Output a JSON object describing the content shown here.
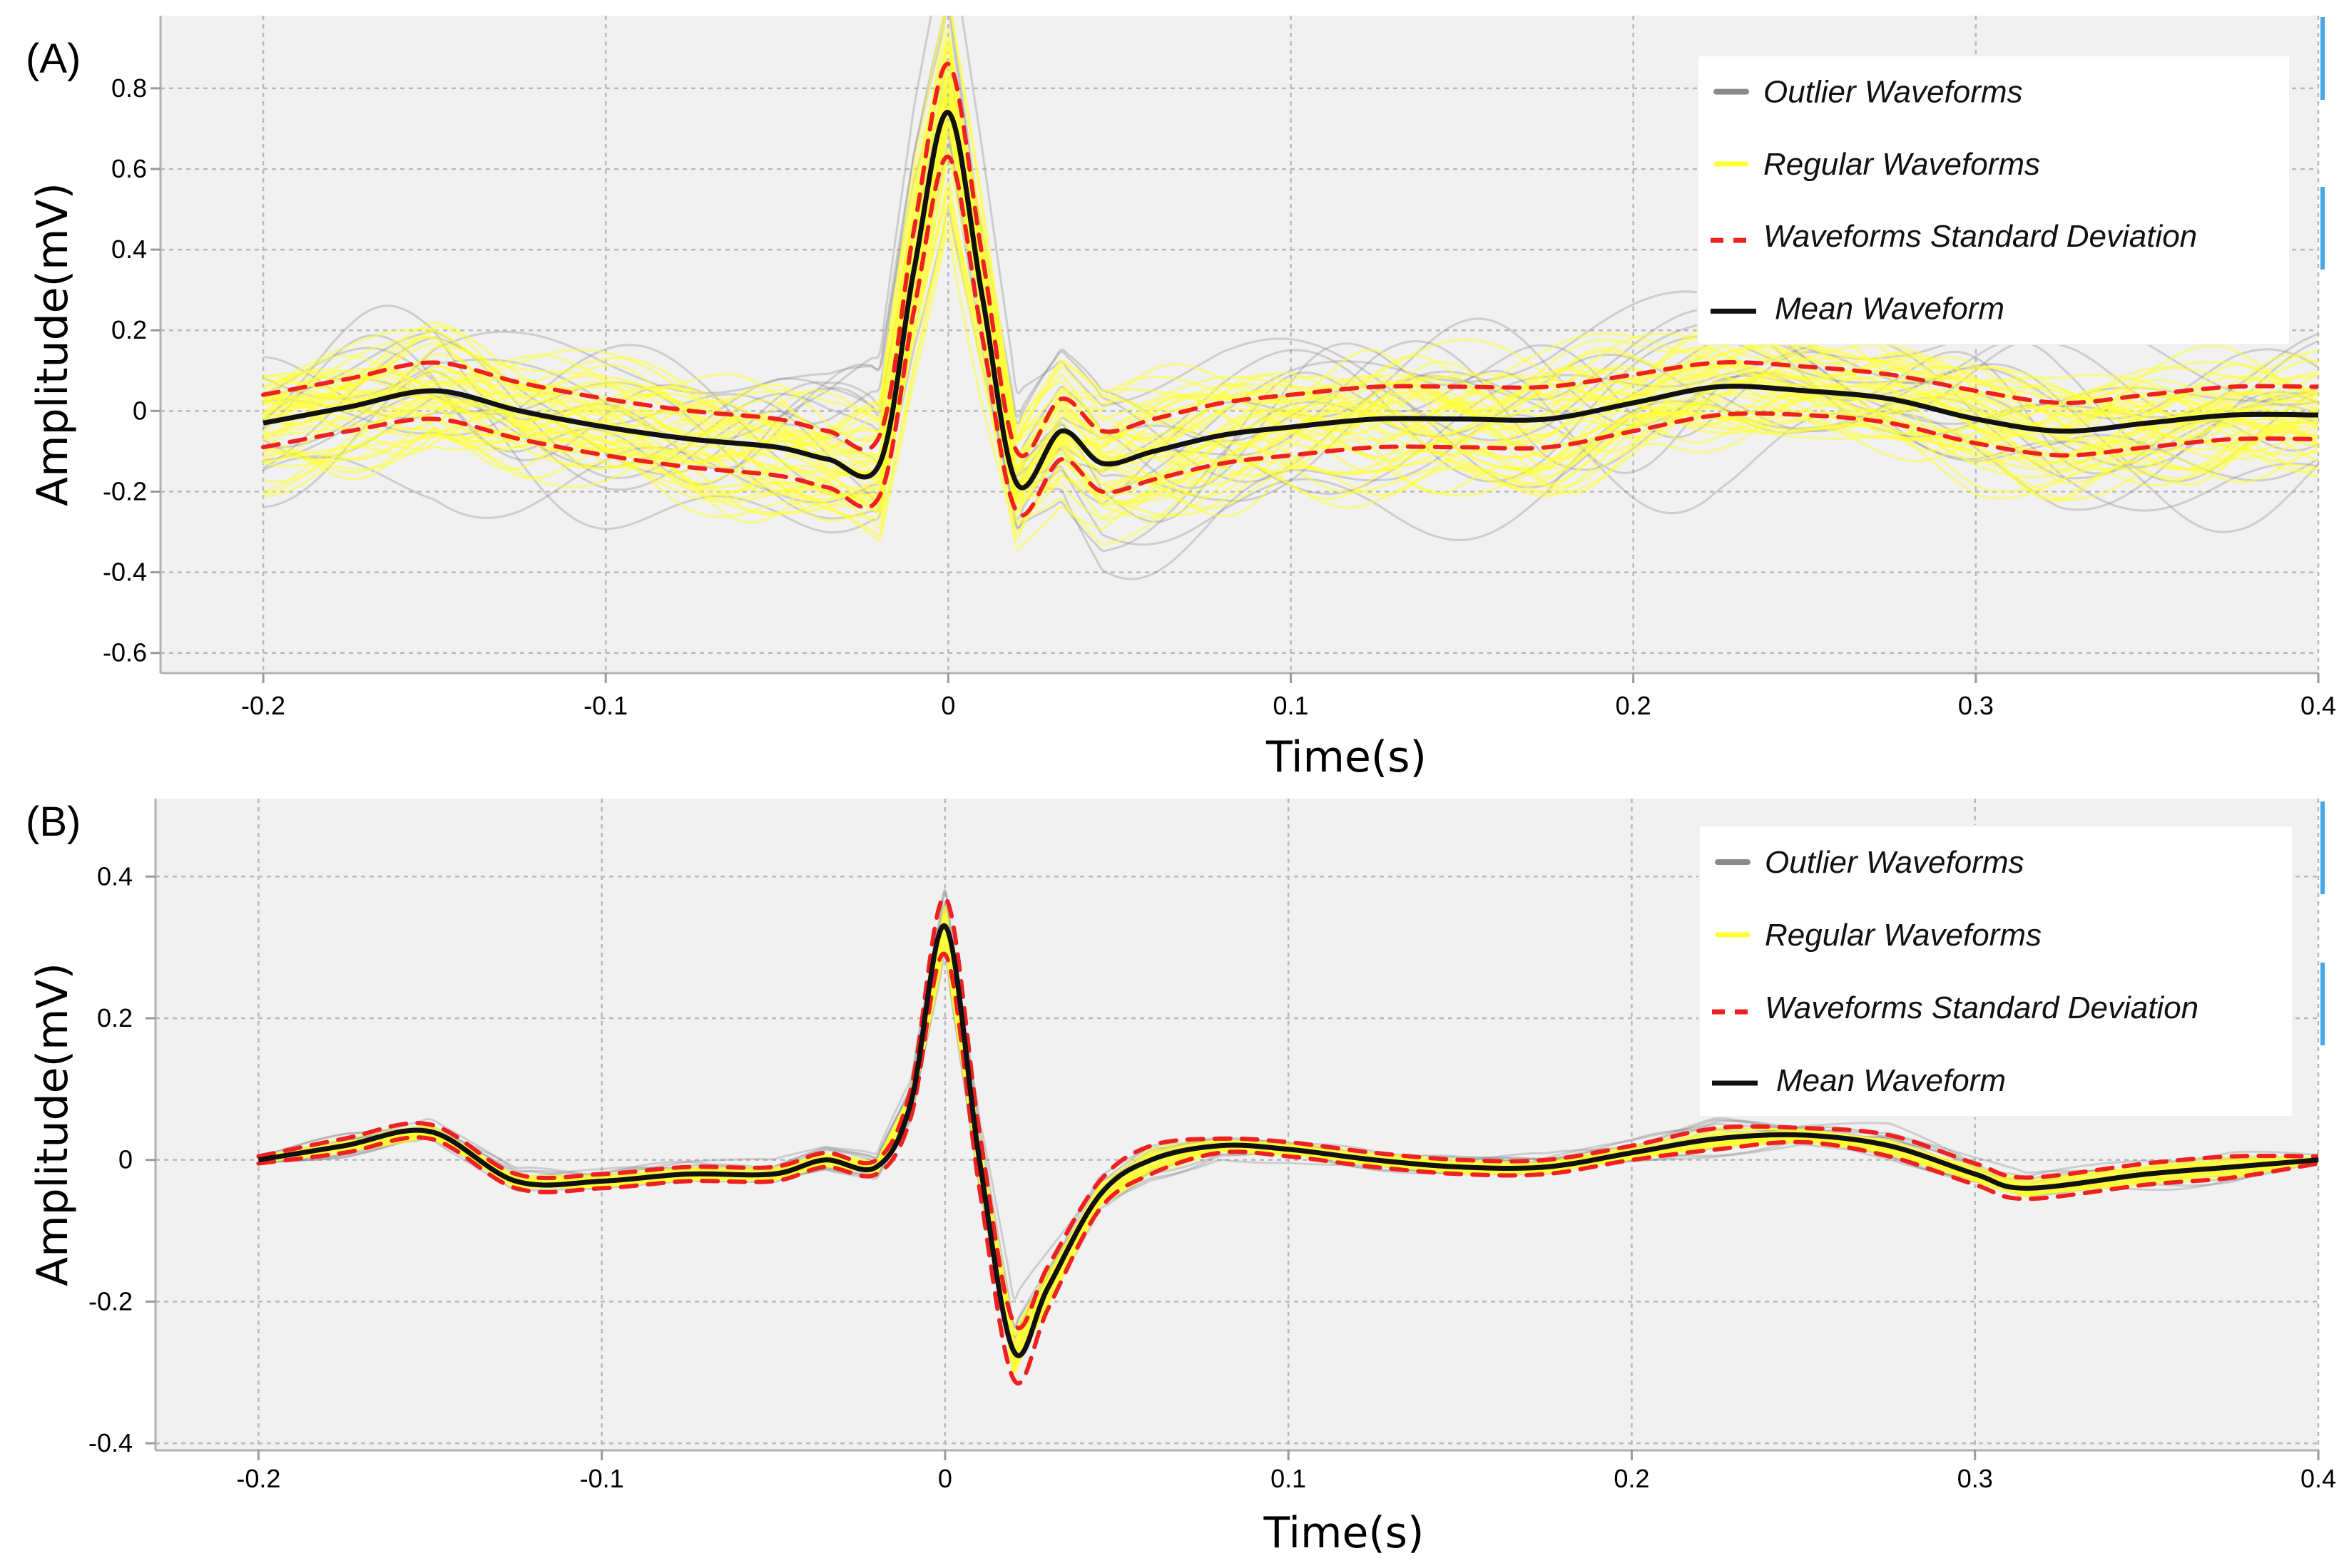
{
  "figure": {
    "colors": {
      "background": "#f1f1f1",
      "outlier": "#8a8a8a",
      "regular": "#ffff33",
      "std": "#ee2020",
      "mean": "#111111",
      "edge_mark": "#46a7e6"
    }
  },
  "chart_data": [
    {
      "panel_label": "(A)",
      "type": "line",
      "title": "",
      "xlabel": "Time(s)",
      "ylabel": "Amplitude(mV)",
      "xlim": [
        -0.23,
        0.4
      ],
      "ylim": [
        -0.65,
        0.98
      ],
      "x_ticks": [
        -0.2,
        -0.1,
        0,
        0.1,
        0.2,
        0.3,
        0.4
      ],
      "x_tick_labels": [
        "-0.2",
        "-0.1",
        "0",
        "0.1",
        "0.2",
        "0.3",
        "0.4"
      ],
      "y_ticks": [
        -0.6,
        -0.4,
        -0.2,
        0,
        0.2,
        0.4,
        0.6,
        0.8
      ],
      "y_tick_labels": [
        "-0.6",
        "-0.4",
        "-0.2",
        "0",
        "0.2",
        "0.4",
        "0.6",
        "0.8"
      ],
      "grid": true,
      "legend_position": "top-right",
      "legend": [
        {
          "label": "Outlier Waveforms",
          "style": "outlier"
        },
        {
          "label": "Regular Waveforms",
          "style": "regular"
        },
        {
          "label": "Waveforms Standard Deviation",
          "style": "std"
        },
        {
          "label": "Mean Waveform",
          "style": "mean"
        }
      ],
      "x": [
        -0.2,
        -0.175,
        -0.15,
        -0.125,
        -0.1,
        -0.075,
        -0.05,
        -0.035,
        -0.02,
        -0.01,
        0,
        0.01,
        0.02,
        0.033,
        0.045,
        0.06,
        0.08,
        0.1,
        0.125,
        0.15,
        0.175,
        0.2,
        0.225,
        0.25,
        0.275,
        0.3,
        0.325,
        0.35,
        0.375,
        0.4
      ],
      "series": [
        {
          "name": "Mean Waveform",
          "values": [
            -0.03,
            0.01,
            0.05,
            0.0,
            -0.04,
            -0.07,
            -0.09,
            -0.12,
            -0.13,
            0.35,
            0.74,
            0.28,
            -0.18,
            -0.05,
            -0.13,
            -0.1,
            -0.06,
            -0.04,
            -0.02,
            -0.02,
            -0.02,
            0.02,
            0.06,
            0.05,
            0.03,
            -0.02,
            -0.05,
            -0.03,
            -0.01,
            -0.01
          ]
        },
        {
          "name": "Waveforms Standard Deviation (upper)",
          "values": [
            0.04,
            0.08,
            0.12,
            0.07,
            0.03,
            0.0,
            -0.02,
            -0.05,
            -0.06,
            0.45,
            0.86,
            0.38,
            -0.1,
            0.03,
            -0.05,
            -0.02,
            0.02,
            0.04,
            0.06,
            0.06,
            0.06,
            0.09,
            0.12,
            0.11,
            0.09,
            0.05,
            0.02,
            0.04,
            0.06,
            0.06
          ]
        },
        {
          "name": "Waveforms Standard Deviation (lower)",
          "values": [
            -0.09,
            -0.05,
            -0.02,
            -0.07,
            -0.11,
            -0.14,
            -0.16,
            -0.19,
            -0.21,
            0.25,
            0.63,
            0.18,
            -0.25,
            -0.12,
            -0.2,
            -0.17,
            -0.13,
            -0.11,
            -0.09,
            -0.09,
            -0.09,
            -0.05,
            -0.01,
            -0.01,
            -0.03,
            -0.08,
            -0.11,
            -0.09,
            -0.07,
            -0.07
          ]
        }
      ]
    },
    {
      "panel_label": "(B)",
      "type": "line",
      "title": "",
      "xlabel": "Time(s)",
      "ylabel": "Amplitude(mV)",
      "xlim": [
        -0.23,
        0.4
      ],
      "ylim": [
        -0.41,
        0.51
      ],
      "x_ticks": [
        -0.2,
        -0.1,
        0,
        0.1,
        0.2,
        0.3,
        0.4
      ],
      "x_tick_labels": [
        "-0.2",
        "-0.1",
        "0",
        "0.1",
        "0.2",
        "0.3",
        "0.4"
      ],
      "y_ticks": [
        -0.4,
        -0.2,
        0,
        0.2,
        0.4
      ],
      "y_tick_labels": [
        "-0.4",
        "-0.2",
        "0",
        "0.2",
        "0.4"
      ],
      "grid": true,
      "legend_position": "top-right",
      "legend": [
        {
          "label": "Outlier Waveforms",
          "style": "outlier"
        },
        {
          "label": "Regular Waveforms",
          "style": "regular"
        },
        {
          "label": "Waveforms Standard Deviation",
          "style": "std"
        },
        {
          "label": "Mean Waveform",
          "style": "mean"
        }
      ],
      "x": [
        -0.2,
        -0.175,
        -0.15,
        -0.125,
        -0.1,
        -0.075,
        -0.05,
        -0.035,
        -0.02,
        -0.01,
        0,
        0.01,
        0.02,
        0.03,
        0.045,
        0.06,
        0.08,
        0.1,
        0.125,
        0.15,
        0.175,
        0.2,
        0.225,
        0.25,
        0.275,
        0.3,
        0.315,
        0.35,
        0.375,
        0.4
      ],
      "series": [
        {
          "name": "Mean Waveform",
          "values": [
            0.0,
            0.02,
            0.04,
            -0.03,
            -0.03,
            -0.02,
            -0.02,
            0.0,
            -0.01,
            0.08,
            0.33,
            0.0,
            -0.27,
            -0.18,
            -0.05,
            0.0,
            0.02,
            0.015,
            0.0,
            -0.01,
            -0.01,
            0.01,
            0.03,
            0.035,
            0.02,
            -0.02,
            -0.04,
            -0.02,
            -0.01,
            0.0
          ]
        },
        {
          "name": "Waveforms Standard Deviation (upper)",
          "values": [
            0.005,
            0.03,
            0.05,
            -0.02,
            -0.02,
            -0.01,
            -0.01,
            0.01,
            0.0,
            0.1,
            0.37,
            0.04,
            -0.23,
            -0.15,
            -0.03,
            0.02,
            0.03,
            0.025,
            0.01,
            0.0,
            0.0,
            0.02,
            0.045,
            0.045,
            0.035,
            -0.005,
            -0.025,
            -0.005,
            0.005,
            0.005
          ]
        },
        {
          "name": "Waveforms Standard Deviation (lower)",
          "values": [
            -0.005,
            0.01,
            0.03,
            -0.04,
            -0.04,
            -0.03,
            -0.03,
            -0.01,
            -0.02,
            0.06,
            0.29,
            -0.04,
            -0.31,
            -0.21,
            -0.07,
            -0.02,
            0.01,
            0.005,
            -0.01,
            -0.02,
            -0.02,
            0.0,
            0.015,
            0.025,
            0.005,
            -0.035,
            -0.055,
            -0.035,
            -0.025,
            -0.005
          ]
        }
      ]
    }
  ]
}
